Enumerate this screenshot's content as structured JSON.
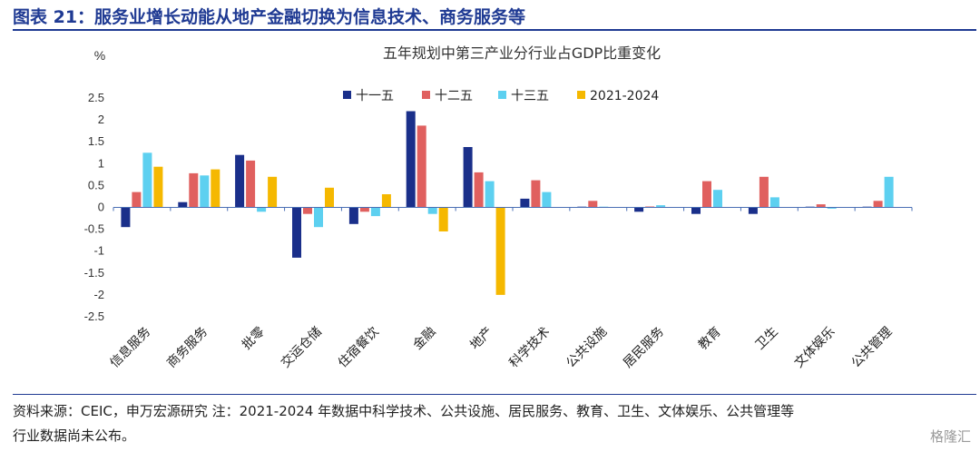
{
  "figure": {
    "title": "图表 21：服务业增长动能从地产金融切换为信息技术、商务服务等",
    "source_line1": "资料来源：CEIC，申万宏源研究 注：2021-2024 年数据中科学技术、公共设施、居民服务、教育、卫生、文体娱乐、公共管理等",
    "source_line2": "行业数据尚未公布。",
    "watermark": "格隆汇"
  },
  "colors": {
    "rule": "#1f3a93",
    "series": [
      "#1a2f8a",
      "#e0605f",
      "#5dd0f0",
      "#f5b800"
    ]
  },
  "chart_data": {
    "type": "bar",
    "title": "五年规划中第三产业分行业占GDP比重变化",
    "unit": "%",
    "xlabel": "",
    "ylabel": "%",
    "ylim": [
      -2.5,
      2.5
    ],
    "yticks": [
      "2.5",
      "2",
      "1.5",
      "1",
      "0.5",
      "0",
      "-0.5",
      "-1",
      "-1.5",
      "-2",
      "-2.5"
    ],
    "legend_position": "top-center",
    "grid": false,
    "categories": [
      "信息服务",
      "商务服务",
      "批零",
      "交运仓储",
      "住宿餐饮",
      "金融",
      "地产",
      "科学技术",
      "公共设施",
      "居民服务",
      "教育",
      "卫生",
      "文体娱乐",
      "公共管理"
    ],
    "series": [
      {
        "name": "十一五",
        "values": [
          -0.45,
          0.12,
          1.2,
          -1.15,
          -0.38,
          2.2,
          1.38,
          0.2,
          0.0,
          -0.1,
          -0.15,
          -0.15,
          0.0,
          0.0
        ]
      },
      {
        "name": "十二五",
        "values": [
          0.35,
          0.78,
          1.07,
          -0.15,
          -0.1,
          1.87,
          0.8,
          0.62,
          0.15,
          0.02,
          0.6,
          0.7,
          0.07,
          0.15
        ]
      },
      {
        "name": "十三五",
        "values": [
          1.25,
          0.73,
          -0.1,
          -0.45,
          -0.2,
          -0.15,
          0.6,
          0.35,
          0.0,
          0.05,
          0.4,
          0.23,
          -0.03,
          0.7
        ]
      },
      {
        "name": "2021-2024",
        "values": [
          0.93,
          0.87,
          0.7,
          0.45,
          0.3,
          -0.55,
          -2.0,
          null,
          null,
          null,
          null,
          null,
          null,
          null
        ]
      }
    ]
  }
}
